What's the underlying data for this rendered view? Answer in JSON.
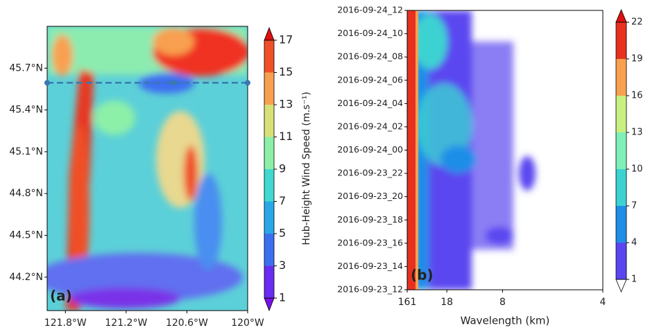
{
  "chart_data": [
    {
      "type": "contourf",
      "panel_label": "(a)",
      "xlim": [
        -121.98,
        -120
      ],
      "ylim": [
        43.96,
        46.0
      ],
      "xticks": [
        {
          "value": -121.8,
          "label": "121.8°W"
        },
        {
          "value": -121.2,
          "label": "121.2°W"
        },
        {
          "value": -120.6,
          "label": "120.6°W"
        },
        {
          "value": -120,
          "label": "120°W"
        }
      ],
      "yticks": [
        {
          "value": 44.2,
          "label": "44.2°N"
        },
        {
          "value": 44.5,
          "label": "44.5°N"
        },
        {
          "value": 44.8,
          "label": "44.8°N"
        },
        {
          "value": 45.1,
          "label": "45.1°N"
        },
        {
          "value": 45.4,
          "label": "45.4°N"
        },
        {
          "value": 45.7,
          "label": "45.7°N"
        }
      ],
      "line_y": 45.595,
      "colorbar": {
        "label": "Hub-Height Wind Speed (m.s⁻¹)",
        "ticks": [
          1,
          3,
          5,
          7,
          9,
          11,
          13,
          15,
          17
        ],
        "colors": [
          "#6a2cf0",
          "#3c6ef0",
          "#29a8e8",
          "#40d8d0",
          "#8cf0a8",
          "#d8e078",
          "#f8a050",
          "#f05028"
        ],
        "extend_colors": [
          "#7a10e8",
          "#e01010"
        ]
      }
    },
    {
      "type": "contourf",
      "panel_label": "(b)",
      "xlabel": "Wavelength (km)",
      "xlim": [
        0.00621,
        0.25
      ],
      "xticks": [
        {
          "value": 0.00621,
          "label": "161"
        },
        {
          "value": 0.0556,
          "label": "18"
        },
        {
          "value": 0.125,
          "label": "8"
        },
        {
          "value": 0.25,
          "label": "4"
        }
      ],
      "ycategories": [
        "2016-09-23_12",
        "2016-09-23_14",
        "2016-09-23_16",
        "2016-09-23_18",
        "2016-09-23_20",
        "2016-09-23_22",
        "2016-09-24_00",
        "2016-09-24_02",
        "2016-09-24_04",
        "2016-09-24_06",
        "2016-09-24_08",
        "2016-09-24_10",
        "2016-09-24_12"
      ],
      "colorbar": {
        "ticks": [
          1,
          4,
          7,
          10,
          13,
          16,
          19,
          22
        ],
        "colors": [
          "#5a46f0",
          "#1e8ee8",
          "#3cd2d2",
          "#80f0b8",
          "#c8f080",
          "#f8a050",
          "#e83020"
        ],
        "extend_colors": [
          "#ffffff",
          "#e01010"
        ]
      }
    }
  ]
}
